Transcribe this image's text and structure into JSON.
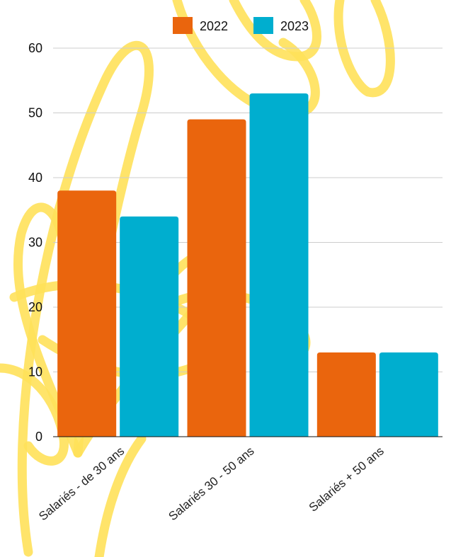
{
  "colors": {
    "background_decoration": "#FFE15A",
    "gridline": "#cccccc",
    "axis": "#111111"
  },
  "chart_data": {
    "type": "bar",
    "categories": [
      "Salariés - de 30 ans",
      "Salariés 30 - 50 ans",
      "Salariés + 50 ans"
    ],
    "series": [
      {
        "name": "2022",
        "color": "#EA650D",
        "values": [
          38,
          49,
          13
        ]
      },
      {
        "name": "2023",
        "color": "#00AECF",
        "values": [
          34,
          53,
          13
        ]
      }
    ],
    "yticks": [
      0,
      10,
      20,
      30,
      40,
      50,
      60
    ],
    "ylim": [
      0,
      60
    ],
    "grid": true,
    "legend_position": "top-center",
    "title": "",
    "xlabel": "",
    "ylabel": ""
  }
}
